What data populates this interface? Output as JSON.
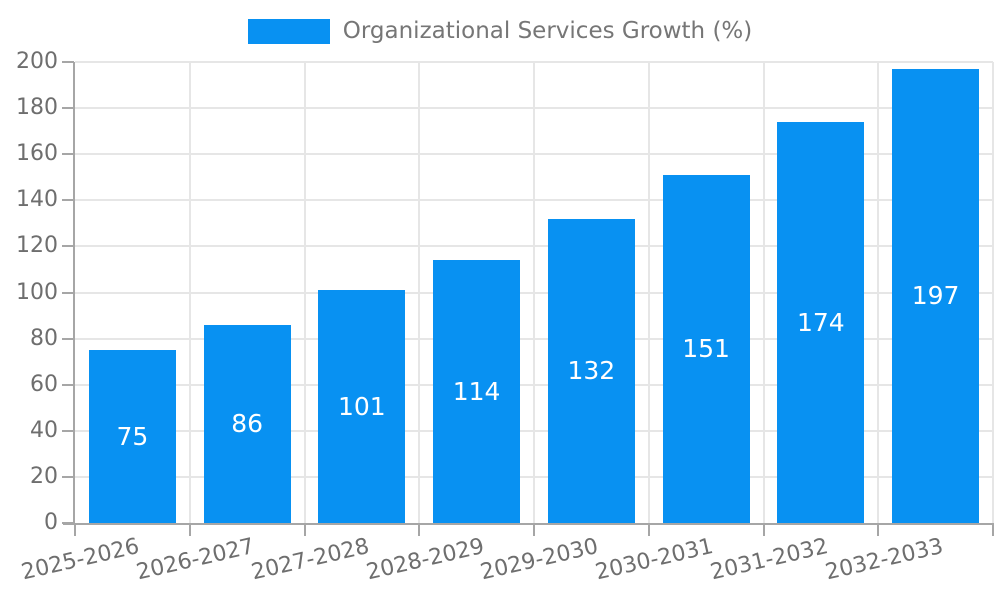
{
  "chart_data": {
    "type": "bar",
    "title": "Organizational Services Growth (%)",
    "categories": [
      "2025-2026",
      "2026-2027",
      "2027-2028",
      "2028-2029",
      "2029-2030",
      "2030-2031",
      "2031-2032",
      "2032-2033"
    ],
    "values": [
      75,
      86,
      101,
      114,
      132,
      151,
      174,
      197
    ],
    "xlabel": "",
    "ylabel": "",
    "ylim": [
      0,
      200
    ],
    "ytick_step": 20,
    "ytick_labels": [
      "0",
      "20",
      "40",
      "60",
      "80",
      "100",
      "120",
      "140",
      "160",
      "180",
      "200"
    ],
    "grid": true,
    "legend_position": "top-center",
    "bar_color": "#0891f2",
    "value_label_color": "#ffffff",
    "axis_text_color": "#6e6e6e",
    "axis_line_color": "#a6a6a6",
    "grid_line_color": "#e6e6e6",
    "legend_text_color": "#767676"
  },
  "legend": {
    "label": "Organizational Services Growth (%)",
    "swatch_color": "#0891f2"
  }
}
